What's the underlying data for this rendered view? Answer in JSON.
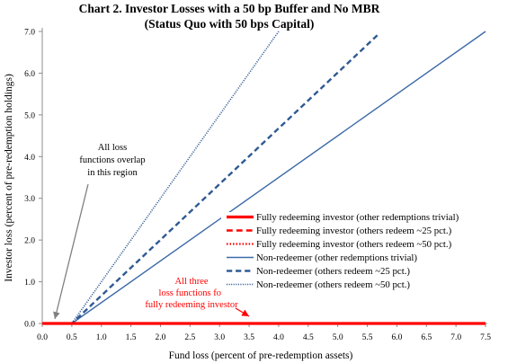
{
  "chart_data": {
    "type": "line",
    "title": "Chart 2. Investor Losses with a 50 bp Buffer and No MBR",
    "subtitle": "(Status Quo with 50 bps Capital)",
    "xlabel": "Fund loss (percent of pre-redemption assets)",
    "ylabel": "Investor loss (percent of pre-redemption holdings)",
    "xlim": [
      0,
      7.5
    ],
    "ylim": [
      0,
      7.0
    ],
    "x_ticks": [
      "0.0",
      "0.5",
      "1.0",
      "1.5",
      "2.0",
      "2.5",
      "3.0",
      "3.5",
      "4.0",
      "4.5",
      "5.0",
      "5.5",
      "6.0",
      "6.5",
      "7.0",
      "7.5"
    ],
    "y_ticks": [
      "0.0",
      "1.0",
      "2.0",
      "3.0",
      "4.0",
      "5.0",
      "6.0",
      "7.0"
    ],
    "grid": false,
    "legend_position": "right",
    "series": [
      {
        "name": "Fully redeeming investor (other redemptions trivial)",
        "color": "#ff0000",
        "style": "solid",
        "width": 3.2,
        "points": [
          [
            0,
            0.0
          ],
          [
            7.5,
            0.0
          ]
        ]
      },
      {
        "name": "Fully redeeming investor (others redeem ~25 pct.)",
        "color": "#ff0000",
        "style": "dashed",
        "width": 2.6,
        "points": [
          [
            0,
            0.0
          ],
          [
            7.5,
            0.0
          ]
        ]
      },
      {
        "name": "Fully redeeming investor (others redeem ~50 pct.)",
        "color": "#ff0000",
        "style": "dotted",
        "width": 2.2,
        "points": [
          [
            0,
            0.0
          ],
          [
            7.5,
            0.0
          ]
        ]
      },
      {
        "name": "Non-redeemer (other redemptions trivial)",
        "color": "#3d6aa8",
        "style": "solid",
        "width": 1.4,
        "points": [
          [
            0,
            0.0
          ],
          [
            0.5,
            0.0
          ],
          [
            7.5,
            7.0
          ]
        ]
      },
      {
        "name": "Non-redeemer (others redeem ~25 pct.)",
        "color": "#2f5a93",
        "style": "dashed",
        "width": 2.4,
        "points": [
          [
            0,
            0.0
          ],
          [
            0.5,
            0.0
          ],
          [
            5.7,
            6.95
          ]
        ]
      },
      {
        "name": "Non-redeemer (others redeem ~50 pct.)",
        "color": "#2f5a93",
        "style": "dotted",
        "width": 1.6,
        "points": [
          [
            0,
            0.0
          ],
          [
            0.5,
            0.0
          ],
          [
            4.0,
            7.0
          ]
        ]
      }
    ],
    "annotations": [
      {
        "lines": [
          "All loss",
          "functions overlap",
          "in this region"
        ],
        "color": "#000000",
        "arrow_from": [
          0.45,
          3.5
        ],
        "arrow_to": [
          0.3,
          0.05
        ]
      },
      {
        "lines": [
          "All three",
          "loss functions for",
          "fully redeeming investor"
        ],
        "color": "#ff0000",
        "arrow_from": [
          3.3,
          0.35
        ],
        "arrow_to": [
          3.8,
          0.1
        ]
      }
    ]
  }
}
